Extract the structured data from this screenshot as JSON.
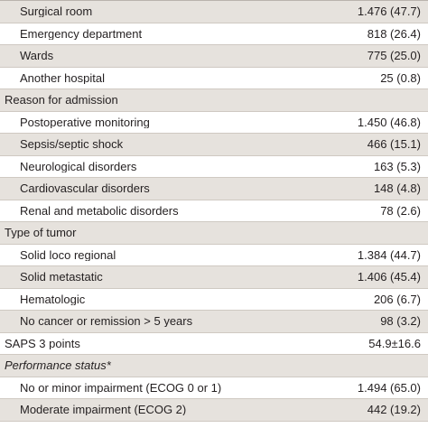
{
  "rows": [
    {
      "label": "Surgical room",
      "value": "1.476 (47.7)"
    },
    {
      "label": "Emergency department",
      "value": "818 (26.4)"
    },
    {
      "label": "Wards",
      "value": "775 (25.0)"
    },
    {
      "label": "Another hospital",
      "value": "25 (0.8)"
    },
    {
      "label": "Reason for admission",
      "value": ""
    },
    {
      "label": "Postoperative monitoring",
      "value": "1.450 (46.8)"
    },
    {
      "label": "Sepsis/septic shock",
      "value": "466 (15.1)"
    },
    {
      "label": "Neurological disorders",
      "value": "163 (5.3)"
    },
    {
      "label": "Cardiovascular disorders",
      "value": "148 (4.8)"
    },
    {
      "label": "Renal and metabolic disorders",
      "value": "78 (2.6)"
    },
    {
      "label": "Type of tumor",
      "value": ""
    },
    {
      "label": "Solid loco regional",
      "value": "1.384 (44.7)"
    },
    {
      "label": "Solid metastatic",
      "value": "1.406 (45.4)"
    },
    {
      "label": "Hematologic",
      "value": "206 (6.7)"
    },
    {
      "label": "No cancer or remission > 5 years",
      "value": "98 (3.2)"
    },
    {
      "label": "SAPS 3 points",
      "value": "54.9±16.6"
    },
    {
      "label": "Performance status*",
      "value": ""
    },
    {
      "label": "No or minor impairment (ECOG 0 or 1)",
      "value": "1.494 (65.0)"
    },
    {
      "label": "Moderate impairment (ECOG 2)",
      "value": "442 (19.2)"
    }
  ]
}
